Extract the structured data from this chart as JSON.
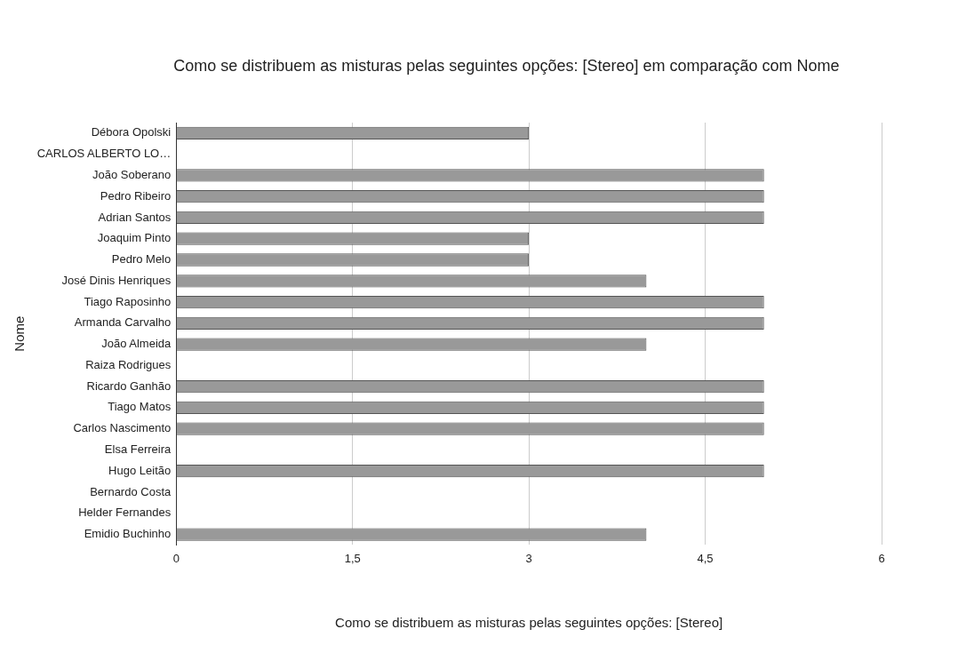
{
  "chart_data": {
    "type": "bar",
    "orientation": "horizontal",
    "title": "Como se distribuem as misturas pelas seguintes opções: [Stereo] em comparação com Nome",
    "xlabel": "Como se distribuem as misturas pelas seguintes opções: [Stereo]",
    "ylabel": "Nome",
    "categories": [
      "Débora Opolski",
      "CARLOS ALBERTO LO…",
      "João Soberano",
      "Pedro Ribeiro",
      "Adrian Santos",
      "Joaquim Pinto",
      "Pedro Melo",
      "José Dinis Henriques",
      "Tiago Raposinho",
      "Armanda Carvalho",
      "João Almeida",
      "Raiza Rodrigues",
      "Ricardo Ganhão",
      "Tiago Matos",
      "Carlos Nascimento",
      "Elsa Ferreira",
      "Hugo Leitão",
      "Bernardo Costa",
      "Helder Fernandes",
      "Emidio Buchinho"
    ],
    "values": [
      3,
      null,
      5,
      5,
      5,
      3,
      3,
      4,
      5,
      5,
      4,
      null,
      5,
      5,
      5,
      null,
      5,
      null,
      null,
      4
    ],
    "color": "#999999",
    "xlim": [
      0,
      6
    ],
    "xticks": [
      0,
      {
        "value": 1.5,
        "label": "1,5"
      },
      3,
      {
        "value": 4.5,
        "label": "4,5"
      },
      6
    ],
    "grid": "x",
    "legend": false
  }
}
